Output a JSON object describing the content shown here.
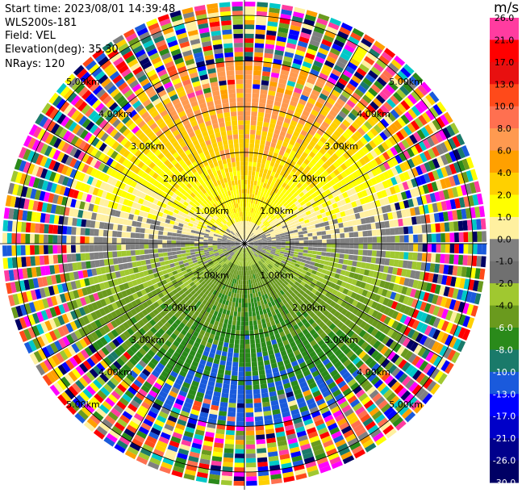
{
  "info": {
    "start_time": "Start time: 2023/08/01 14:39:48",
    "instrument": "WLS200s-181",
    "field": "Field: VEL",
    "elevation": "Elevation(deg): 35.30",
    "nrays": "NRays: 120"
  },
  "colorbar": {
    "unit": "m/s",
    "ticks": [
      "26.0",
      "21.0",
      "17.0",
      "13.0",
      "10.0",
      "8.0",
      "6.0",
      "4.0",
      "2.0",
      "1.0",
      "0.0",
      "-1.0",
      "-2.0",
      "-4.0",
      "-6.0",
      "-8.0",
      "-10.0",
      "-13.0",
      "-17.0",
      "-21.0",
      "-26.0",
      "-30.0"
    ],
    "colors": [
      "#ff3ca0",
      "#ff0000",
      "#e81010",
      "#ff4a1a",
      "#ff7050",
      "#ff9a50",
      "#ffa000",
      "#ffd000",
      "#ffff00",
      "#fff0a0",
      "#808080",
      "#707070",
      "#a0c830",
      "#6a9a1e",
      "#2a8a1a",
      "#1a7a6a",
      "#1a5adc",
      "#0000ff",
      "#0000c8",
      "#00008c",
      "#000064",
      "#000040"
    ]
  },
  "chart_data": {
    "type": "ppi",
    "field": "VEL",
    "nrays": 120,
    "range_rings_km": [
      1.0,
      2.0,
      3.0,
      4.0,
      5.0
    ],
    "ring_labels": [
      "1.00km",
      "2.00km",
      "3.00km",
      "4.00km",
      "5.00km"
    ],
    "grid": true,
    "azimuth_spokes_deg": [
      0,
      30,
      60,
      90,
      120,
      150,
      180,
      210,
      240,
      270,
      300,
      330
    ],
    "max_range_km": 5.3,
    "velocity_scale": {
      "min": -30.0,
      "max": 26.0,
      "unit": "m/s"
    }
  }
}
